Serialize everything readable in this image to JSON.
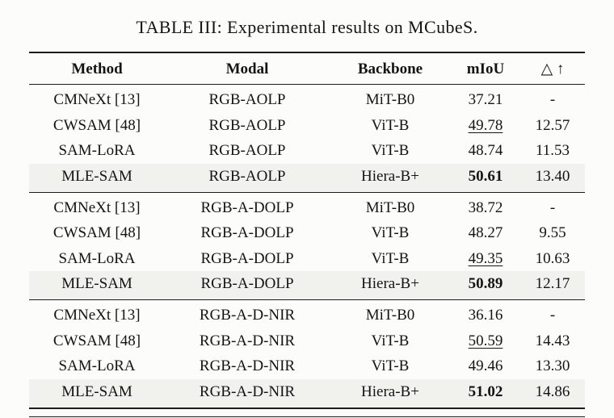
{
  "caption": "TABLE III: Experimental results on MCubeS.",
  "headers": [
    "Method",
    "Modal",
    "Backbone",
    "mIoU",
    "△ ↑"
  ],
  "accent_highlight_color": "#f1f1ee",
  "groups": [
    {
      "modal_group": "RGB-AOLP",
      "rows": [
        {
          "cells": [
            "CMNeXt [13]",
            "RGB-AOLP",
            "MiT-B0",
            "37.21",
            "-"
          ],
          "miou_emphasis": "none",
          "highlight": false
        },
        {
          "cells": [
            "CWSAM [48]",
            "RGB-AOLP",
            "ViT-B",
            "49.78",
            "12.57"
          ],
          "miou_emphasis": "underline",
          "highlight": false
        },
        {
          "cells": [
            "SAM-LoRA",
            "RGB-AOLP",
            "ViT-B",
            "48.74",
            "11.53"
          ],
          "miou_emphasis": "none",
          "highlight": false
        },
        {
          "cells": [
            "MLE-SAM",
            "RGB-AOLP",
            "Hiera-B+",
            "50.61",
            "13.40"
          ],
          "miou_emphasis": "bold",
          "highlight": true
        }
      ]
    },
    {
      "modal_group": "RGB-A-DOLP",
      "rows": [
        {
          "cells": [
            "CMNeXt [13]",
            "RGB-A-DOLP",
            "MiT-B0",
            "38.72",
            "-"
          ],
          "miou_emphasis": "none",
          "highlight": false
        },
        {
          "cells": [
            "CWSAM [48]",
            "RGB-A-DOLP",
            "ViT-B",
            "48.27",
            "9.55"
          ],
          "miou_emphasis": "none",
          "highlight": false
        },
        {
          "cells": [
            "SAM-LoRA",
            "RGB-A-DOLP",
            "ViT-B",
            "49.35",
            "10.63"
          ],
          "miou_emphasis": "underline",
          "highlight": false
        },
        {
          "cells": [
            "MLE-SAM",
            "RGB-A-DOLP",
            "Hiera-B+",
            "50.89",
            "12.17"
          ],
          "miou_emphasis": "bold",
          "highlight": true
        }
      ]
    },
    {
      "modal_group": "RGB-A-D-NIR",
      "rows": [
        {
          "cells": [
            "CMNeXt [13]",
            "RGB-A-D-NIR",
            "MiT-B0",
            "36.16",
            "-"
          ],
          "miou_emphasis": "none",
          "highlight": false
        },
        {
          "cells": [
            "CWSAM [48]",
            "RGB-A-D-NIR",
            "ViT-B",
            "50.59",
            "14.43"
          ],
          "miou_emphasis": "underline",
          "highlight": false
        },
        {
          "cells": [
            "SAM-LoRA",
            "RGB-A-D-NIR",
            "ViT-B",
            "49.46",
            "13.30"
          ],
          "miou_emphasis": "none",
          "highlight": false
        },
        {
          "cells": [
            "MLE-SAM",
            "RGB-A-D-NIR",
            "Hiera-B+",
            "51.02",
            "14.86"
          ],
          "miou_emphasis": "bold",
          "highlight": true
        }
      ]
    }
  ]
}
